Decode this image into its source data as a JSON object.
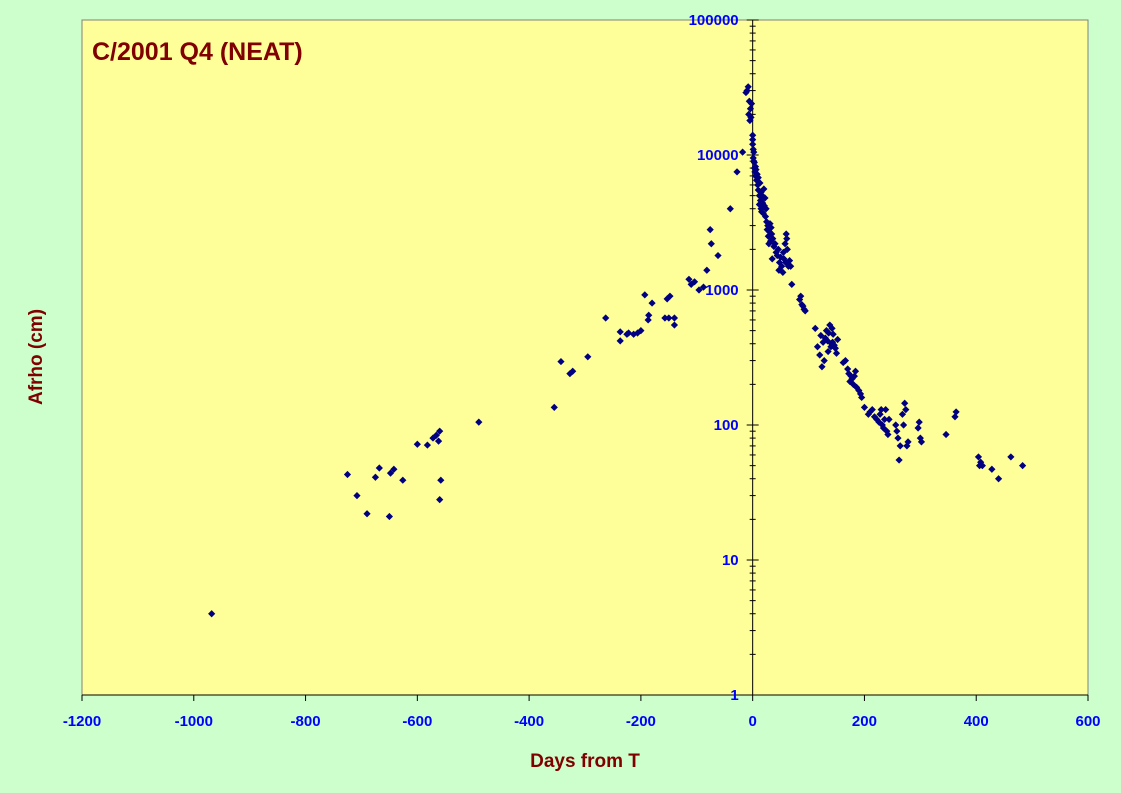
{
  "chart_data": {
    "type": "scatter",
    "title": "C/2001 Q4 (NEAT)",
    "xlabel": "Days from T",
    "ylabel": "Afrho (cm)",
    "xlim": [
      -1200,
      600
    ],
    "ylim": [
      1,
      100000
    ],
    "y_scale": "log",
    "x_ticks": [
      "-1200",
      "-1000",
      "-800",
      "-600",
      "-400",
      "-200",
      "0",
      "200",
      "400",
      "600"
    ],
    "y_ticks": [
      "1",
      "10",
      "100",
      "1000",
      "10000",
      "100000"
    ],
    "grid": false,
    "legend": "none",
    "colors": {
      "background": "#ccffcc",
      "plot_area": "#ffff99",
      "marker": "#000080",
      "title": "#800000",
      "tick_labels": "#0000ff"
    },
    "series": [
      {
        "points": [
          [
            -968,
            4
          ],
          [
            -725,
            43
          ],
          [
            -708,
            30
          ],
          [
            -690,
            22
          ],
          [
            -675,
            41
          ],
          [
            -668,
            48
          ],
          [
            -650,
            21
          ],
          [
            -648,
            44
          ],
          [
            -642,
            47
          ],
          [
            -626,
            39
          ],
          [
            -600,
            72
          ],
          [
            -582,
            71
          ],
          [
            -572,
            80
          ],
          [
            -566,
            84
          ],
          [
            -562,
            76
          ],
          [
            -560,
            90
          ],
          [
            -560,
            28
          ],
          [
            -558,
            39
          ],
          [
            -490,
            105
          ],
          [
            -355,
            135
          ],
          [
            -343,
            295
          ],
          [
            -327,
            240
          ],
          [
            -322,
            250
          ],
          [
            -295,
            320
          ],
          [
            -263,
            620
          ],
          [
            -237,
            420
          ],
          [
            -237,
            490
          ],
          [
            -225,
            470
          ],
          [
            -222,
            480
          ],
          [
            -213,
            470
          ],
          [
            -206,
            480
          ],
          [
            -200,
            500
          ],
          [
            -193,
            920
          ],
          [
            -187,
            600
          ],
          [
            -186,
            650
          ],
          [
            -180,
            800
          ],
          [
            -157,
            620
          ],
          [
            -153,
            860
          ],
          [
            -150,
            620
          ],
          [
            -148,
            900
          ],
          [
            -140,
            550
          ],
          [
            -140,
            620
          ],
          [
            -114,
            1200
          ],
          [
            -110,
            1100
          ],
          [
            -104,
            1150
          ],
          [
            -96,
            1000
          ],
          [
            -88,
            1050
          ],
          [
            -82,
            1400
          ],
          [
            -76,
            2800
          ],
          [
            -74,
            2200
          ],
          [
            -62,
            1800
          ],
          [
            -40,
            4000
          ],
          [
            -28,
            7500
          ],
          [
            -18,
            10500
          ],
          [
            -12,
            29000
          ],
          [
            -10,
            30000
          ],
          [
            -8,
            32000
          ],
          [
            -7,
            20000
          ],
          [
            -6,
            25000
          ],
          [
            -5,
            18000
          ],
          [
            -4,
            22000
          ],
          [
            -3,
            19000
          ],
          [
            -2,
            24000
          ],
          [
            0,
            12000
          ],
          [
            0,
            14000
          ],
          [
            0,
            13000
          ],
          [
            1,
            11000
          ],
          [
            1,
            9500
          ],
          [
            2,
            10500
          ],
          [
            2,
            9000
          ],
          [
            3,
            8800
          ],
          [
            3,
            8000
          ],
          [
            4,
            7500
          ],
          [
            5,
            8200
          ],
          [
            5,
            7000
          ],
          [
            6,
            7800
          ],
          [
            7,
            6500
          ],
          [
            8,
            7200
          ],
          [
            9,
            6000
          ],
          [
            10,
            5500
          ],
          [
            10,
            6800
          ],
          [
            12,
            5000
          ],
          [
            12,
            4300
          ],
          [
            13,
            6200
          ],
          [
            14,
            4600
          ],
          [
            15,
            4000
          ],
          [
            15,
            5300
          ],
          [
            16,
            3800
          ],
          [
            17,
            5000
          ],
          [
            18,
            4400
          ],
          [
            19,
            3700
          ],
          [
            20,
            5600
          ],
          [
            21,
            4200
          ],
          [
            22,
            4800
          ],
          [
            23,
            3500
          ],
          [
            24,
            4000
          ],
          [
            25,
            3200
          ],
          [
            26,
            2800
          ],
          [
            27,
            3000
          ],
          [
            28,
            2500
          ],
          [
            29,
            2200
          ],
          [
            30,
            2700
          ],
          [
            31,
            3100
          ],
          [
            32,
            2300
          ],
          [
            33,
            2900
          ],
          [
            34,
            2600
          ],
          [
            35,
            1700
          ],
          [
            36,
            2400
          ],
          [
            38,
            2100
          ],
          [
            40,
            2200
          ],
          [
            42,
            1900
          ],
          [
            44,
            1800
          ],
          [
            46,
            2000
          ],
          [
            47,
            1400
          ],
          [
            48,
            1600
          ],
          [
            50,
            1750
          ],
          [
            52,
            1500
          ],
          [
            54,
            1350
          ],
          [
            55,
            1900
          ],
          [
            56,
            1700
          ],
          [
            58,
            2200
          ],
          [
            59,
            1600
          ],
          [
            60,
            2600
          ],
          [
            61,
            2400
          ],
          [
            62,
            2000
          ],
          [
            64,
            1500
          ],
          [
            66,
            1650
          ],
          [
            68,
            1500
          ],
          [
            70,
            1100
          ],
          [
            84,
            850
          ],
          [
            86,
            900
          ],
          [
            88,
            780
          ],
          [
            90,
            760
          ],
          [
            92,
            720
          ],
          [
            94,
            700
          ],
          [
            112,
            520
          ],
          [
            116,
            380
          ],
          [
            120,
            330
          ],
          [
            122,
            460
          ],
          [
            124,
            270
          ],
          [
            126,
            410
          ],
          [
            128,
            300
          ],
          [
            130,
            440
          ],
          [
            132,
            500
          ],
          [
            134,
            420
          ],
          [
            135,
            350
          ],
          [
            136,
            480
          ],
          [
            138,
            550
          ],
          [
            140,
            380
          ],
          [
            141,
            400
          ],
          [
            142,
            520
          ],
          [
            143,
            410
          ],
          [
            144,
            470
          ],
          [
            146,
            390
          ],
          [
            148,
            370
          ],
          [
            150,
            340
          ],
          [
            152,
            430
          ],
          [
            162,
            290
          ],
          [
            166,
            300
          ],
          [
            170,
            260
          ],
          [
            172,
            240
          ],
          [
            174,
            210
          ],
          [
            176,
            230
          ],
          [
            178,
            220
          ],
          [
            180,
            200
          ],
          [
            182,
            230
          ],
          [
            184,
            250
          ],
          [
            186,
            190
          ],
          [
            190,
            180
          ],
          [
            193,
            170
          ],
          [
            195,
            160
          ],
          [
            200,
            135
          ],
          [
            207,
            120
          ],
          [
            210,
            125
          ],
          [
            214,
            130
          ],
          [
            218,
            115
          ],
          [
            222,
            110
          ],
          [
            226,
            105
          ],
          [
            228,
            120
          ],
          [
            230,
            130
          ],
          [
            232,
            100
          ],
          [
            234,
            95
          ],
          [
            236,
            110
          ],
          [
            238,
            130
          ],
          [
            240,
            90
          ],
          [
            242,
            85
          ],
          [
            244,
            110
          ],
          [
            256,
            100
          ],
          [
            258,
            90
          ],
          [
            260,
            80
          ],
          [
            262,
            55
          ],
          [
            264,
            70
          ],
          [
            268,
            120
          ],
          [
            270,
            100
          ],
          [
            272,
            145
          ],
          [
            274,
            130
          ],
          [
            276,
            70
          ],
          [
            278,
            75
          ],
          [
            296,
            95
          ],
          [
            298,
            105
          ],
          [
            300,
            80
          ],
          [
            302,
            75
          ],
          [
            346,
            85
          ],
          [
            362,
            115
          ],
          [
            364,
            125
          ],
          [
            404,
            58
          ],
          [
            406,
            50
          ],
          [
            408,
            53
          ],
          [
            411,
            50
          ],
          [
            428,
            47
          ],
          [
            440,
            40
          ],
          [
            462,
            58
          ],
          [
            483,
            50
          ]
        ]
      }
    ]
  }
}
